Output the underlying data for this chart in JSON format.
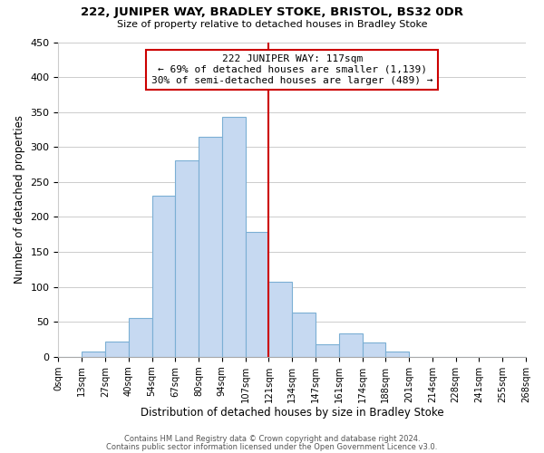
{
  "title1": "222, JUNIPER WAY, BRADLEY STOKE, BRISTOL, BS32 0DR",
  "title2": "Size of property relative to detached houses in Bradley Stoke",
  "xlabel": "Distribution of detached houses by size in Bradley Stoke",
  "ylabel": "Number of detached properties",
  "bar_color": "#c6d9f1",
  "bar_edge_color": "#7bafd4",
  "bar_heights": [
    0,
    7,
    22,
    55,
    230,
    281,
    315,
    343,
    178,
    107,
    63,
    18,
    33,
    20,
    8,
    0,
    0,
    0,
    0,
    0
  ],
  "x_tick_labels": [
    "0sqm",
    "13sqm",
    "27sqm",
    "40sqm",
    "54sqm",
    "67sqm",
    "80sqm",
    "94sqm",
    "107sqm",
    "121sqm",
    "134sqm",
    "147sqm",
    "161sqm",
    "174sqm",
    "188sqm",
    "201sqm",
    "214sqm",
    "228sqm",
    "241sqm",
    "255sqm",
    "268sqm"
  ],
  "vline_bin": 9,
  "vline_color": "#cc0000",
  "annotation_title": "222 JUNIPER WAY: 117sqm",
  "annotation_line1": "← 69% of detached houses are smaller (1,139)",
  "annotation_line2": "30% of semi-detached houses are larger (489) →",
  "annotation_box_color": "#cc0000",
  "ylim": [
    0,
    450
  ],
  "yticks": [
    0,
    50,
    100,
    150,
    200,
    250,
    300,
    350,
    400,
    450
  ],
  "footer1": "Contains HM Land Registry data © Crown copyright and database right 2024.",
  "footer2": "Contains public sector information licensed under the Open Government Licence v3.0.",
  "background_color": "#ffffff",
  "grid_color": "#cccccc"
}
